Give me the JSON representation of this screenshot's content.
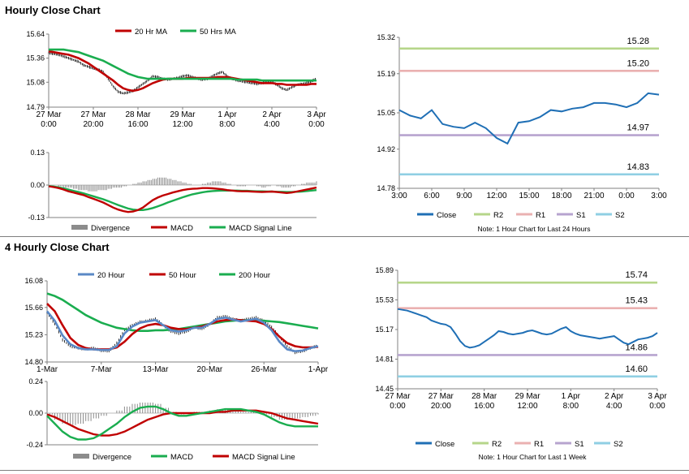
{
  "sections": {
    "hourly_title": "Hourly Close Chart",
    "four_hourly_title": "4 Hourly Close Chart"
  },
  "colors": {
    "close": "#1f6fb5",
    "ma_red": "#c00000",
    "ma_green": "#1aad4f",
    "ma_blue": "#5a88c6",
    "divergence": "#8c8c8c",
    "r2": "#b6d68a",
    "r1": "#eab1b1",
    "s1": "#b7a4cf",
    "s2": "#8fcfe3"
  },
  "chart_data": [
    {
      "id": "hourly_price",
      "type": "line",
      "x": [
        0,
        4,
        8,
        12,
        16,
        20,
        24,
        28,
        32,
        36,
        40,
        44,
        48,
        52,
        56,
        60,
        64,
        68,
        72,
        76,
        80,
        84,
        88,
        92,
        96,
        100,
        104,
        108,
        112,
        116,
        120,
        124,
        128,
        132,
        136,
        140,
        144,
        148,
        152,
        156,
        160,
        164,
        168,
        172,
        176,
        180,
        184,
        188,
        192,
        196,
        200,
        204,
        208,
        212,
        216
      ],
      "x_ticks": [
        "27 Mar\n0:00",
        "27 Mar\n20:00",
        "28 Mar\n16:00",
        "29 Mar\n12:00",
        "1 Apr\n8:00",
        "2 Apr\n4:00",
        "3 Apr\n0:00"
      ],
      "y_ticks": [
        "15.64",
        "15.36",
        "15.08",
        "14.79"
      ],
      "ylim": [
        14.79,
        15.64
      ],
      "legend": [
        "20 Hr MA",
        "50 Hrs MA"
      ],
      "series": [
        {
          "name": "Close",
          "color": "#000000",
          "values": [
            15.42,
            15.41,
            15.4,
            15.38,
            15.36,
            15.34,
            15.32,
            15.28,
            15.26,
            15.24,
            15.23,
            15.2,
            15.12,
            15.03,
            14.97,
            14.95,
            14.96,
            14.98,
            15.02,
            15.06,
            15.1,
            15.15,
            15.14,
            15.12,
            15.11,
            15.12,
            15.13,
            15.15,
            15.16,
            15.14,
            15.12,
            15.11,
            15.12,
            15.15,
            15.18,
            15.2,
            15.15,
            15.12,
            15.1,
            15.09,
            15.08,
            15.07,
            15.06,
            15.07,
            15.08,
            15.09,
            15.05,
            15.01,
            14.99,
            15.02,
            15.05,
            15.06,
            15.07,
            15.09,
            15.13
          ]
        },
        {
          "name": "20 Hr MA",
          "color": "#c00000",
          "values": [
            15.44,
            15.43,
            15.42,
            15.41,
            15.4,
            15.38,
            15.36,
            15.33,
            15.3,
            15.26,
            15.22,
            15.18,
            15.14,
            15.1,
            15.05,
            15.01,
            14.99,
            14.98,
            14.99,
            15.01,
            15.04,
            15.07,
            15.09,
            15.11,
            15.12,
            15.12,
            15.12,
            15.12,
            15.13,
            15.13,
            15.13,
            15.13,
            15.13,
            15.13,
            15.14,
            15.14,
            15.14,
            15.13,
            15.12,
            15.11,
            15.1,
            15.09,
            15.08,
            15.07,
            15.07,
            15.07,
            15.06,
            15.06,
            15.05,
            15.05,
            15.05,
            15.05,
            15.05,
            15.06,
            15.06
          ]
        },
        {
          "name": "50 Hrs MA",
          "color": "#1aad4f",
          "values": [
            15.46,
            15.46,
            15.46,
            15.46,
            15.45,
            15.44,
            15.43,
            15.41,
            15.39,
            15.37,
            15.35,
            15.33,
            15.3,
            15.27,
            15.24,
            15.21,
            15.18,
            15.16,
            15.14,
            15.13,
            15.12,
            15.12,
            15.12,
            15.12,
            15.12,
            15.12,
            15.12,
            15.12,
            15.12,
            15.12,
            15.12,
            15.12,
            15.12,
            15.12,
            15.12,
            15.12,
            15.12,
            15.12,
            15.11,
            15.11,
            15.11,
            15.11,
            15.11,
            15.1,
            15.1,
            15.1,
            15.1,
            15.1,
            15.1,
            15.1,
            15.1,
            15.1,
            15.1,
            15.1,
            15.1
          ]
        }
      ]
    },
    {
      "id": "hourly_macd",
      "type": "line",
      "y_ticks": [
        "0.13",
        "0.00",
        "-0.13"
      ],
      "ylim": [
        -0.13,
        0.13
      ],
      "legend": [
        "Divergence",
        "MACD",
        "MACD Signal Line"
      ],
      "series": [
        {
          "name": "Divergence",
          "color": "#8c8c8c",
          "values": [
            0.0,
            0.0,
            -0.005,
            -0.01,
            -0.01,
            -0.015,
            -0.02,
            -0.02,
            -0.025,
            -0.025,
            -0.02,
            -0.02,
            -0.015,
            -0.01,
            -0.01,
            -0.005,
            0.0,
            0.005,
            0.01,
            0.015,
            0.02,
            0.025,
            0.03,
            0.03,
            0.025,
            0.02,
            0.015,
            0.01,
            0.005,
            0.0,
            0.0,
            0.005,
            0.01,
            0.015,
            0.015,
            0.01,
            0.005,
            0.0,
            -0.005,
            -0.005,
            0.0,
            0.0,
            -0.005,
            -0.01,
            -0.005,
            0.0,
            -0.005,
            -0.01,
            -0.01,
            -0.005,
            0.0,
            0.005,
            0.01,
            0.01,
            0.015
          ]
        },
        {
          "name": "MACD",
          "color": "#c00000",
          "values": [
            -0.005,
            -0.008,
            -0.012,
            -0.018,
            -0.025,
            -0.03,
            -0.035,
            -0.04,
            -0.048,
            -0.055,
            -0.062,
            -0.07,
            -0.08,
            -0.09,
            -0.098,
            -0.104,
            -0.108,
            -0.106,
            -0.1,
            -0.09,
            -0.075,
            -0.06,
            -0.05,
            -0.042,
            -0.036,
            -0.03,
            -0.025,
            -0.02,
            -0.017,
            -0.015,
            -0.014,
            -0.012,
            -0.012,
            -0.013,
            -0.015,
            -0.017,
            -0.02,
            -0.022,
            -0.024,
            -0.025,
            -0.025,
            -0.026,
            -0.027,
            -0.028,
            -0.027,
            -0.026,
            -0.028,
            -0.03,
            -0.032,
            -0.03,
            -0.026,
            -0.022,
            -0.018,
            -0.014,
            -0.01
          ]
        },
        {
          "name": "MACD Signal Line",
          "color": "#1aad4f",
          "values": [
            -0.004,
            -0.006,
            -0.009,
            -0.013,
            -0.018,
            -0.023,
            -0.028,
            -0.033,
            -0.039,
            -0.045,
            -0.051,
            -0.057,
            -0.064,
            -0.072,
            -0.08,
            -0.087,
            -0.094,
            -0.098,
            -0.1,
            -0.1,
            -0.097,
            -0.092,
            -0.085,
            -0.078,
            -0.07,
            -0.063,
            -0.056,
            -0.049,
            -0.043,
            -0.037,
            -0.033,
            -0.029,
            -0.026,
            -0.024,
            -0.023,
            -0.022,
            -0.022,
            -0.022,
            -0.022,
            -0.023,
            -0.023,
            -0.024,
            -0.025,
            -0.025,
            -0.026,
            -0.026,
            -0.027,
            -0.027,
            -0.028,
            -0.028,
            -0.027,
            -0.026,
            -0.024,
            -0.022,
            -0.02
          ]
        }
      ]
    },
    {
      "id": "hourly_pivots",
      "type": "line",
      "x_ticks": [
        "3:00",
        "6:00",
        "9:00",
        "12:00",
        "15:00",
        "18:00",
        "21:00",
        "0:00",
        "3:00"
      ],
      "y_ticks": [
        "15.32",
        "15.19",
        "15.05",
        "14.92",
        "14.78"
      ],
      "ylim": [
        14.78,
        15.32
      ],
      "levels": [
        {
          "name": "R2",
          "value": 15.28,
          "label": "15.28",
          "color": "#b6d68a"
        },
        {
          "name": "R1",
          "value": 15.2,
          "label": "15.20",
          "color": "#eab1b1"
        },
        {
          "name": "S1",
          "value": 14.97,
          "label": "14.97",
          "color": "#b7a4cf"
        },
        {
          "name": "S2",
          "value": 14.83,
          "label": "14.83",
          "color": "#8fcfe3"
        }
      ],
      "legend": [
        "Close",
        "R2",
        "R1",
        "S1",
        "S2"
      ],
      "note": "Note: 1 Hour Chart for Last 24 Hours",
      "series": [
        {
          "name": "Close",
          "color": "#1f6fb5",
          "values": [
            15.06,
            15.04,
            15.03,
            15.06,
            15.01,
            15.0,
            14.995,
            15.015,
            14.995,
            14.96,
            14.94,
            15.015,
            15.02,
            15.035,
            15.06,
            15.055,
            15.065,
            15.07,
            15.085,
            15.085,
            15.08,
            15.07,
            15.085,
            15.12,
            15.115
          ]
        }
      ]
    },
    {
      "id": "four_hourly_price",
      "type": "line",
      "x_ticks": [
        "1-Mar",
        "7-Mar",
        "13-Mar",
        "20-Mar",
        "26-Mar",
        "1-Apr"
      ],
      "y_ticks": [
        "16.08",
        "15.66",
        "15.23",
        "14.80"
      ],
      "ylim": [
        14.8,
        16.08
      ],
      "legend": [
        "20 Hour",
        "50 Hour",
        "200 Hour"
      ],
      "series": [
        {
          "name": "Close",
          "color": "#000000",
          "values": [
            15.58,
            15.4,
            15.15,
            15.05,
            15.02,
            15.0,
            15.02,
            14.98,
            14.97,
            15.1,
            15.3,
            15.38,
            15.43,
            15.45,
            15.48,
            15.38,
            15.28,
            15.25,
            15.28,
            15.35,
            15.32,
            15.4,
            15.5,
            15.52,
            15.48,
            15.45,
            15.48,
            15.5,
            15.45,
            15.35,
            15.2,
            15.05,
            14.95,
            14.97,
            15.02,
            15.06
          ]
        },
        {
          "name": "20 Hour",
          "color": "#5a88c6",
          "values": [
            15.6,
            15.45,
            15.22,
            15.08,
            15.02,
            15.0,
            15.0,
            14.99,
            14.99,
            15.05,
            15.25,
            15.36,
            15.42,
            15.44,
            15.46,
            15.38,
            15.3,
            15.28,
            15.3,
            15.34,
            15.34,
            15.4,
            15.48,
            15.5,
            15.47,
            15.44,
            15.46,
            15.48,
            15.42,
            15.3,
            15.12,
            15.0,
            14.97,
            14.98,
            15.02,
            15.05
          ]
        },
        {
          "name": "50 Hour",
          "color": "#c00000",
          "values": [
            15.72,
            15.6,
            15.38,
            15.18,
            15.07,
            15.02,
            15.0,
            15.0,
            15.0,
            15.03,
            15.12,
            15.24,
            15.33,
            15.38,
            15.4,
            15.38,
            15.34,
            15.32,
            15.32,
            15.34,
            15.36,
            15.4,
            15.44,
            15.46,
            15.47,
            15.46,
            15.45,
            15.44,
            15.4,
            15.32,
            15.2,
            15.1,
            15.05,
            15.03,
            15.03,
            15.04
          ]
        },
        {
          "name": "200 Hour",
          "color": "#1aad4f",
          "values": [
            15.88,
            15.84,
            15.78,
            15.7,
            15.62,
            15.54,
            15.48,
            15.42,
            15.38,
            15.34,
            15.32,
            15.3,
            15.29,
            15.29,
            15.3,
            15.3,
            15.31,
            15.32,
            15.34,
            15.36,
            15.38,
            15.4,
            15.42,
            15.44,
            15.45,
            15.46,
            15.46,
            15.46,
            15.45,
            15.44,
            15.43,
            15.41,
            15.39,
            15.37,
            15.35,
            15.33
          ]
        }
      ]
    },
    {
      "id": "four_hourly_macd",
      "type": "line",
      "y_ticks": [
        "0.24",
        "0.00",
        "-0.24"
      ],
      "ylim": [
        -0.24,
        0.24
      ],
      "legend": [
        "Divergence",
        "MACD",
        "MACD Signal Line"
      ],
      "series": [
        {
          "name": "Divergence",
          "color": "#8c8c8c",
          "values": [
            -0.01,
            -0.05,
            -0.08,
            -0.09,
            -0.08,
            -0.06,
            -0.04,
            -0.02,
            0.0,
            0.02,
            0.05,
            0.07,
            0.08,
            0.08,
            0.07,
            0.04,
            0.01,
            -0.01,
            0.0,
            0.01,
            0.01,
            0.02,
            0.03,
            0.03,
            0.02,
            0.01,
            0.01,
            0.01,
            -0.01,
            -0.03,
            -0.05,
            -0.05,
            -0.04,
            -0.03,
            -0.02,
            -0.01
          ]
        },
        {
          "name": "MACD",
          "color": "#1aad4f",
          "values": [
            -0.02,
            -0.08,
            -0.14,
            -0.18,
            -0.2,
            -0.2,
            -0.19,
            -0.16,
            -0.12,
            -0.08,
            -0.03,
            0.01,
            0.04,
            0.05,
            0.05,
            0.03,
            0.0,
            -0.02,
            -0.02,
            -0.01,
            0.0,
            0.01,
            0.02,
            0.03,
            0.03,
            0.03,
            0.02,
            0.01,
            -0.01,
            -0.04,
            -0.07,
            -0.09,
            -0.1,
            -0.1,
            -0.1,
            -0.1
          ]
        },
        {
          "name": "MACD Signal Line",
          "color": "#c00000",
          "values": [
            -0.01,
            -0.03,
            -0.06,
            -0.09,
            -0.12,
            -0.14,
            -0.16,
            -0.17,
            -0.17,
            -0.16,
            -0.14,
            -0.11,
            -0.08,
            -0.05,
            -0.03,
            -0.01,
            0.0,
            0.0,
            0.0,
            0.0,
            0.0,
            0.0,
            0.01,
            0.01,
            0.02,
            0.02,
            0.02,
            0.02,
            0.01,
            0.0,
            -0.02,
            -0.04,
            -0.05,
            -0.06,
            -0.07,
            -0.08
          ]
        }
      ]
    },
    {
      "id": "four_hourly_pivots",
      "type": "line",
      "x_ticks": [
        "27 Mar\n0:00",
        "27 Mar\n20:00",
        "28 Mar\n16:00",
        "29 Mar\n12:00",
        "1 Apr\n8:00",
        "2 Apr\n4:00",
        "3 Apr\n0:00"
      ],
      "y_ticks": [
        "15.89",
        "15.53",
        "15.17",
        "14.81",
        "14.45"
      ],
      "ylim": [
        14.45,
        15.89
      ],
      "levels": [
        {
          "name": "R2",
          "value": 15.74,
          "label": "15.74",
          "color": "#b6d68a"
        },
        {
          "name": "R1",
          "value": 15.43,
          "label": "15.43",
          "color": "#eab1b1"
        },
        {
          "name": "S1",
          "value": 14.86,
          "label": "14.86",
          "color": "#b7a4cf"
        },
        {
          "name": "S2",
          "value": 14.6,
          "label": "14.60",
          "color": "#8fcfe3"
        }
      ],
      "legend": [
        "Close",
        "R2",
        "R1",
        "S1",
        "S2"
      ],
      "note": "Note: 1 Hour Chart for Last 1 Week",
      "series": [
        {
          "name": "Close",
          "color": "#1f6fb5",
          "values": [
            15.42,
            15.41,
            15.4,
            15.38,
            15.36,
            15.34,
            15.32,
            15.28,
            15.26,
            15.24,
            15.23,
            15.2,
            15.12,
            15.03,
            14.97,
            14.95,
            14.96,
            14.98,
            15.02,
            15.06,
            15.1,
            15.15,
            15.14,
            15.12,
            15.11,
            15.12,
            15.13,
            15.15,
            15.16,
            15.14,
            15.12,
            15.11,
            15.12,
            15.15,
            15.18,
            15.2,
            15.15,
            15.12,
            15.1,
            15.09,
            15.08,
            15.07,
            15.06,
            15.07,
            15.08,
            15.09,
            15.05,
            15.01,
            14.99,
            15.02,
            15.05,
            15.06,
            15.07,
            15.09,
            15.13
          ]
        }
      ]
    }
  ]
}
